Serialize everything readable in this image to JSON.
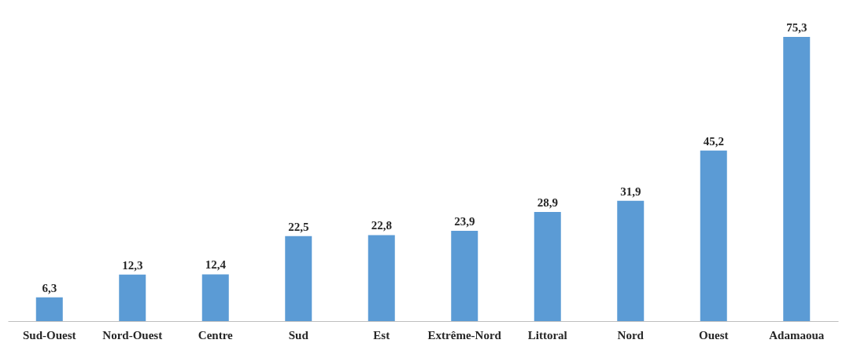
{
  "chart_data": {
    "type": "bar",
    "categories": [
      "Sud-Ouest",
      "Nord-Ouest",
      "Centre",
      "Sud",
      "Est",
      "Extrême-Nord",
      "Littoral",
      "Nord",
      "Ouest",
      "Adamaoua"
    ],
    "values": [
      6.3,
      12.3,
      12.4,
      22.5,
      22.8,
      23.9,
      28.9,
      31.9,
      45.2,
      75.3
    ],
    "value_labels": [
      "6,3",
      "12,3",
      "12,4",
      "22,5",
      "22,8",
      "23,9",
      "28,9",
      "31,9",
      "45,2",
      "75,3"
    ],
    "color": "#5b9bd5",
    "grid": false
  }
}
